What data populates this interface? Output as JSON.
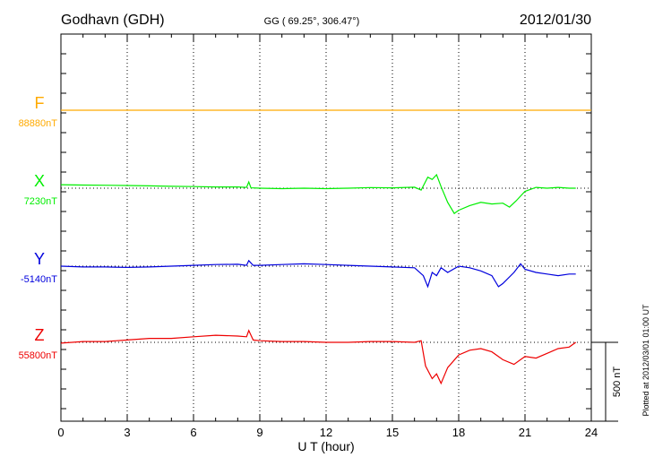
{
  "header": {
    "station": "Godhavn (GDH)",
    "coords": "GG ( 69.25°, 306.47°)",
    "date": "2012/01/30"
  },
  "footer": {
    "plotted": "Plotted at 2012/03/01 01:00 UT"
  },
  "chart_data": {
    "type": "line",
    "xlabel": "U T (hour)",
    "xlim": [
      0,
      24
    ],
    "xticks": [
      "0",
      "3",
      "6",
      "9",
      "12",
      "15",
      "18",
      "21",
      "24"
    ],
    "scale_bar_label": "500 nT",
    "scale_bar_nT": 500,
    "series": [
      {
        "name": "F",
        "baseline_label": "88880nT",
        "color": "#ffaa00",
        "points": [
          [
            0,
            0
          ],
          [
            24,
            0
          ]
        ]
      },
      {
        "name": "X",
        "baseline_label": "7230nT",
        "color": "#00ee00",
        "points": [
          [
            0,
            22
          ],
          [
            1,
            20
          ],
          [
            2,
            19
          ],
          [
            3,
            17
          ],
          [
            4,
            15
          ],
          [
            5,
            12
          ],
          [
            6,
            10
          ],
          [
            7,
            8
          ],
          [
            8,
            8
          ],
          [
            8.4,
            5
          ],
          [
            8.5,
            40
          ],
          [
            8.6,
            2
          ],
          [
            9,
            0
          ],
          [
            10,
            -3
          ],
          [
            11,
            0
          ],
          [
            12,
            -3
          ],
          [
            13,
            0
          ],
          [
            14,
            4
          ],
          [
            15,
            2
          ],
          [
            16,
            6
          ],
          [
            16.3,
            -12
          ],
          [
            16.6,
            70
          ],
          [
            16.8,
            55
          ],
          [
            17.0,
            85
          ],
          [
            17.2,
            10
          ],
          [
            17.5,
            -90
          ],
          [
            17.8,
            -160
          ],
          [
            18,
            -140
          ],
          [
            18.5,
            -110
          ],
          [
            19,
            -90
          ],
          [
            19.5,
            -100
          ],
          [
            20,
            -95
          ],
          [
            20.3,
            -120
          ],
          [
            20.6,
            -80
          ],
          [
            21,
            -20
          ],
          [
            21.5,
            5
          ],
          [
            22,
            0
          ],
          [
            22.5,
            5
          ],
          [
            23,
            0
          ],
          [
            23.3,
            0
          ]
        ]
      },
      {
        "name": "Y",
        "baseline_label": "-5140nT",
        "color": "#0000dd",
        "points": [
          [
            0,
            0
          ],
          [
            1,
            -5
          ],
          [
            2,
            -5
          ],
          [
            3,
            -8
          ],
          [
            4,
            -5
          ],
          [
            5,
            0
          ],
          [
            6,
            5
          ],
          [
            7,
            10
          ],
          [
            8,
            12
          ],
          [
            8.4,
            5
          ],
          [
            8.5,
            35
          ],
          [
            8.7,
            5
          ],
          [
            9,
            5
          ],
          [
            10,
            10
          ],
          [
            11,
            15
          ],
          [
            12,
            10
          ],
          [
            13,
            5
          ],
          [
            14,
            0
          ],
          [
            15,
            -5
          ],
          [
            16,
            -10
          ],
          [
            16.4,
            -60
          ],
          [
            16.6,
            -130
          ],
          [
            16.8,
            -40
          ],
          [
            17.0,
            -60
          ],
          [
            17.2,
            -10
          ],
          [
            17.5,
            -40
          ],
          [
            18,
            0
          ],
          [
            18.5,
            -10
          ],
          [
            19,
            -30
          ],
          [
            19.5,
            -60
          ],
          [
            19.8,
            -130
          ],
          [
            20,
            -110
          ],
          [
            20.5,
            -40
          ],
          [
            20.8,
            15
          ],
          [
            21,
            -20
          ],
          [
            21.5,
            -40
          ],
          [
            22,
            -50
          ],
          [
            22.5,
            -60
          ],
          [
            23,
            -50
          ],
          [
            23.3,
            -50
          ]
        ]
      },
      {
        "name": "Z",
        "baseline_label": "55800nT",
        "color": "#ee0000",
        "points": [
          [
            0,
            -5
          ],
          [
            1,
            5
          ],
          [
            2,
            5
          ],
          [
            3,
            15
          ],
          [
            4,
            25
          ],
          [
            5,
            25
          ],
          [
            6,
            35
          ],
          [
            7,
            45
          ],
          [
            8,
            40
          ],
          [
            8.4,
            35
          ],
          [
            8.5,
            75
          ],
          [
            8.7,
            15
          ],
          [
            9,
            10
          ],
          [
            10,
            5
          ],
          [
            11,
            5
          ],
          [
            12,
            0
          ],
          [
            13,
            0
          ],
          [
            14,
            5
          ],
          [
            15,
            5
          ],
          [
            16,
            0
          ],
          [
            16.3,
            10
          ],
          [
            16.5,
            -150
          ],
          [
            16.8,
            -230
          ],
          [
            17,
            -200
          ],
          [
            17.2,
            -260
          ],
          [
            17.5,
            -160
          ],
          [
            18,
            -80
          ],
          [
            18.5,
            -50
          ],
          [
            19,
            -40
          ],
          [
            19.5,
            -60
          ],
          [
            20,
            -110
          ],
          [
            20.5,
            -140
          ],
          [
            21,
            -90
          ],
          [
            21.5,
            -100
          ],
          [
            22,
            -70
          ],
          [
            22.5,
            -40
          ],
          [
            23,
            -30
          ],
          [
            23.3,
            0
          ]
        ]
      }
    ]
  }
}
